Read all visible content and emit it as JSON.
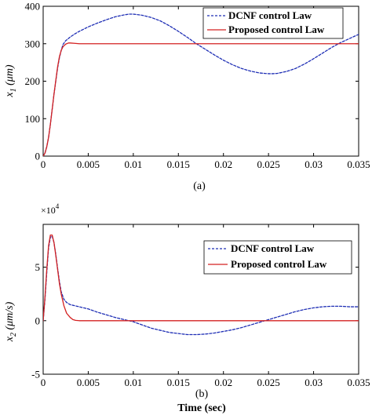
{
  "chart_data": [
    {
      "type": "line",
      "caption": "(a)",
      "xlabel": "",
      "ylabel": "x1 (μm)",
      "ylabel_main": "x",
      "ylabel_sub": "1",
      "ylabel_units": "(μm)",
      "xlim": [
        0,
        0.035
      ],
      "ylim": [
        0,
        400
      ],
      "xticks": [
        "0",
        "0.005",
        "0.01",
        "0.015",
        "0.02",
        "0.025",
        "0.03",
        "0.035"
      ],
      "xtick_values": [
        0,
        0.005,
        0.01,
        0.015,
        0.02,
        0.025,
        0.03,
        0.035
      ],
      "yticks": [
        "0",
        "100",
        "200",
        "300",
        "400"
      ],
      "ytick_values": [
        0,
        100,
        200,
        300,
        400
      ],
      "legend_position": "top-right",
      "series": [
        {
          "name": "DCNF control Law",
          "color": "#1f2fb5",
          "style": "dashed",
          "x": [
            0,
            0.0002,
            0.0004,
            0.0006,
            0.0008,
            0.001,
            0.0012,
            0.0014,
            0.0016,
            0.0018,
            0.002,
            0.0022,
            0.0025,
            0.003,
            0.0035,
            0.004,
            0.005,
            0.006,
            0.007,
            0.008,
            0.009,
            0.0095,
            0.01,
            0.011,
            0.012,
            0.013,
            0.014,
            0.015,
            0.016,
            0.017,
            0.018,
            0.019,
            0.02,
            0.021,
            0.022,
            0.023,
            0.024,
            0.025,
            0.0255,
            0.026,
            0.027,
            0.028,
            0.029,
            0.03,
            0.031,
            0.032,
            0.033,
            0.034,
            0.035
          ],
          "y": [
            0,
            8,
            25,
            50,
            85,
            125,
            165,
            200,
            235,
            262,
            282,
            298,
            308,
            318,
            326,
            333,
            345,
            355,
            364,
            372,
            377,
            379,
            379,
            376,
            370,
            361,
            348,
            333,
            317,
            300,
            285,
            270,
            256,
            244,
            234,
            227,
            222,
            220,
            220,
            221,
            226,
            234,
            246,
            260,
            275,
            290,
            303,
            314,
            325
          ]
        },
        {
          "name": "Proposed control Law",
          "color": "#d42020",
          "style": "solid",
          "x": [
            0,
            0.0002,
            0.0004,
            0.0006,
            0.0008,
            0.001,
            0.0012,
            0.0014,
            0.0016,
            0.0018,
            0.002,
            0.0022,
            0.0025,
            0.0028,
            0.003,
            0.0035,
            0.004,
            0.005,
            0.01,
            0.015,
            0.02,
            0.025,
            0.03,
            0.035
          ],
          "y": [
            0,
            8,
            25,
            50,
            85,
            125,
            165,
            202,
            238,
            265,
            282,
            292,
            299,
            302,
            302,
            301,
            300,
            300,
            300,
            300,
            300,
            300,
            300,
            300
          ]
        }
      ]
    },
    {
      "type": "line",
      "caption": "(b)",
      "xlabel": "Time (sec)",
      "ylabel": "x2 (μm/s)",
      "ylabel_main": "x",
      "ylabel_sub": "2",
      "ylabel_units": "(μm/s)",
      "y_multiplier_base": "×10",
      "y_multiplier_exp": "4",
      "xlim": [
        0,
        0.035
      ],
      "ylim": [
        -5,
        9
      ],
      "xticks": [
        "0",
        "0.005",
        "0.01",
        "0.015",
        "0.02",
        "0.025",
        "0.03",
        "0.035"
      ],
      "xtick_values": [
        0,
        0.005,
        0.01,
        0.015,
        0.02,
        0.025,
        0.03,
        0.035
      ],
      "yticks": [
        "-5",
        "0",
        "5"
      ],
      "ytick_values": [
        -5,
        0,
        5
      ],
      "legend_position": "top-right",
      "series": [
        {
          "name": "DCNF control Law",
          "color": "#1f2fb5",
          "style": "dashed",
          "x": [
            0,
            0.0002,
            0.0004,
            0.0006,
            0.0008,
            0.001,
            0.0012,
            0.0014,
            0.0016,
            0.0018,
            0.002,
            0.0023,
            0.0026,
            0.003,
            0.0035,
            0.004,
            0.005,
            0.006,
            0.007,
            0.008,
            0.009,
            0.01,
            0.011,
            0.012,
            0.013,
            0.014,
            0.015,
            0.016,
            0.017,
            0.018,
            0.019,
            0.02,
            0.021,
            0.022,
            0.023,
            0.024,
            0.025,
            0.026,
            0.027,
            0.028,
            0.029,
            0.03,
            0.031,
            0.032,
            0.033,
            0.034,
            0.035
          ],
          "y": [
            0,
            2,
            4.5,
            6.8,
            7.8,
            7.9,
            7.3,
            6.2,
            4.9,
            3.7,
            2.7,
            2.0,
            1.7,
            1.5,
            1.4,
            1.3,
            1.1,
            0.8,
            0.55,
            0.3,
            0.1,
            -0.1,
            -0.4,
            -0.7,
            -0.9,
            -1.1,
            -1.2,
            -1.3,
            -1.3,
            -1.25,
            -1.15,
            -1.0,
            -0.85,
            -0.65,
            -0.4,
            -0.15,
            0.1,
            0.35,
            0.6,
            0.85,
            1.05,
            1.2,
            1.3,
            1.35,
            1.35,
            1.3,
            1.3
          ]
        },
        {
          "name": "Proposed control Law",
          "color": "#d42020",
          "style": "solid",
          "x": [
            0,
            0.0002,
            0.0004,
            0.0006,
            0.0008,
            0.001,
            0.0012,
            0.0014,
            0.0016,
            0.0018,
            0.002,
            0.0023,
            0.0026,
            0.003,
            0.0033,
            0.0036,
            0.004,
            0.005,
            0.01,
            0.015,
            0.02,
            0.025,
            0.03,
            0.035
          ],
          "y": [
            0,
            2.2,
            4.8,
            7.0,
            8.0,
            8.0,
            7.3,
            6.1,
            4.8,
            3.5,
            2.5,
            1.4,
            0.7,
            0.3,
            0.1,
            0.03,
            0,
            0,
            0,
            0,
            0,
            0,
            0,
            0
          ]
        }
      ]
    }
  ]
}
